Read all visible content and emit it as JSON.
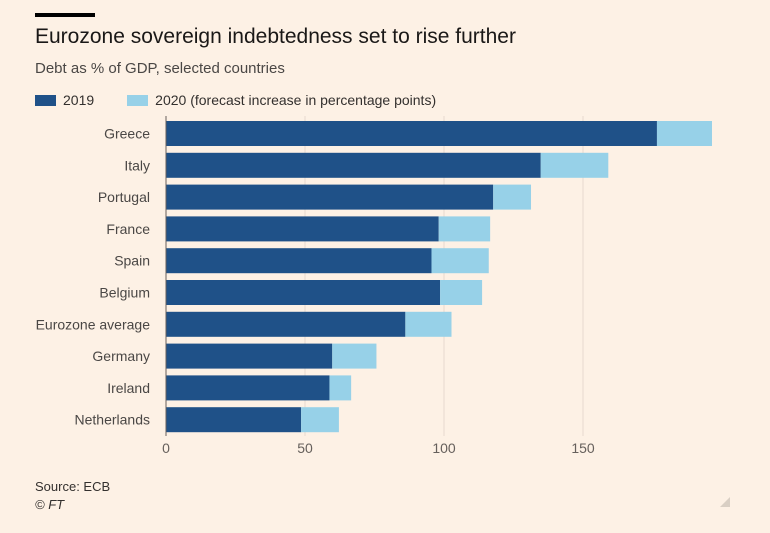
{
  "header": {
    "title": "Eurozone sovereign indebtedness set to rise further",
    "subtitle": "Debt as % of GDP, selected countries"
  },
  "legend": {
    "items": [
      {
        "label": "2019",
        "color": "#1f5188"
      },
      {
        "label": "2020 (forecast increase in percentage points)",
        "color": "#97d1e8"
      }
    ]
  },
  "footer": {
    "source": "Source: ECB",
    "copyright": "© FT"
  },
  "chart_data": {
    "type": "bar",
    "orientation": "horizontal",
    "stacked": true,
    "categories": [
      "Greece",
      "Italy",
      "Portugal",
      "France",
      "Spain",
      "Belgium",
      "Eurozone average",
      "Germany",
      "Ireland",
      "Netherlands"
    ],
    "series": [
      {
        "name": "2019",
        "color": "#1f5188",
        "values": [
          176.6,
          134.8,
          117.7,
          98.1,
          95.5,
          98.6,
          86.1,
          59.8,
          58.8,
          48.6
        ]
      },
      {
        "name": "2020 (forecast increase in percentage points)",
        "color": "#97d1e8",
        "values": [
          19.8,
          24.3,
          13.6,
          18.5,
          20.6,
          15.1,
          16.6,
          15.9,
          7.8,
          13.6
        ]
      }
    ],
    "xlim": [
      0,
      200
    ],
    "xticks": [
      0,
      50,
      100,
      150
    ],
    "grid": true,
    "legend_position": "top-left"
  }
}
